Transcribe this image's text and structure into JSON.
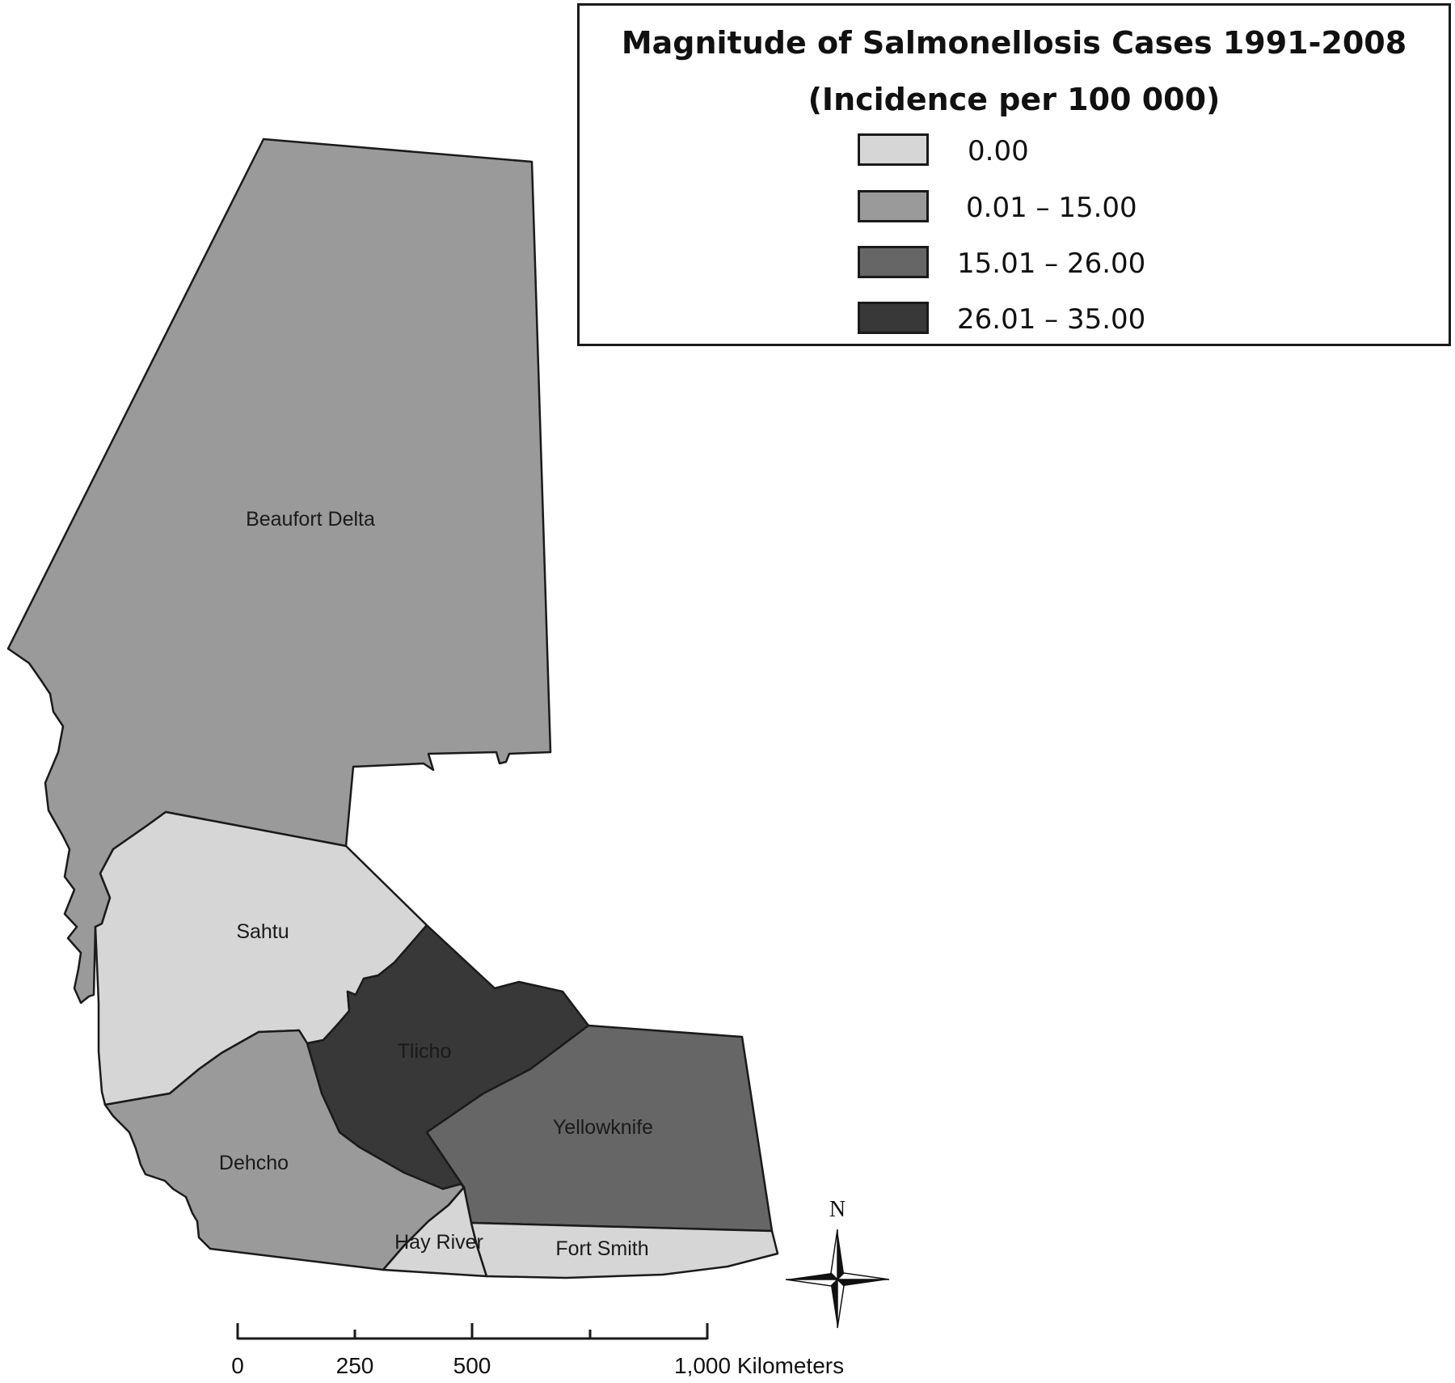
{
  "legend": {
    "title_line1": "Magnitude of Salmonellosis Cases 1991-2008",
    "title_line2": "(Incidence per 100 000)",
    "classes": [
      {
        "label": "0.00",
        "color": "#d6d6d6"
      },
      {
        "label": "0.01 – 15.00",
        "color": "#9a9a9a"
      },
      {
        "label": "15.01 – 26.00",
        "color": "#666666"
      },
      {
        "label": "26.01 – 35.00",
        "color": "#383838"
      }
    ]
  },
  "regions": [
    {
      "name": "Beaufort Delta",
      "class": 1
    },
    {
      "name": "Sahtu",
      "class": 0
    },
    {
      "name": "Tlicho",
      "class": 3
    },
    {
      "name": "Yellowknife",
      "class": 2
    },
    {
      "name": "Dehcho",
      "class": 1
    },
    {
      "name": "Hay River",
      "class": 0
    },
    {
      "name": "Fort Smith",
      "class": 0
    }
  ],
  "scale_bar": {
    "labels": [
      "0",
      "250",
      "500",
      "1,000 Kilometers"
    ]
  },
  "north_arrow": {
    "label": "N"
  }
}
